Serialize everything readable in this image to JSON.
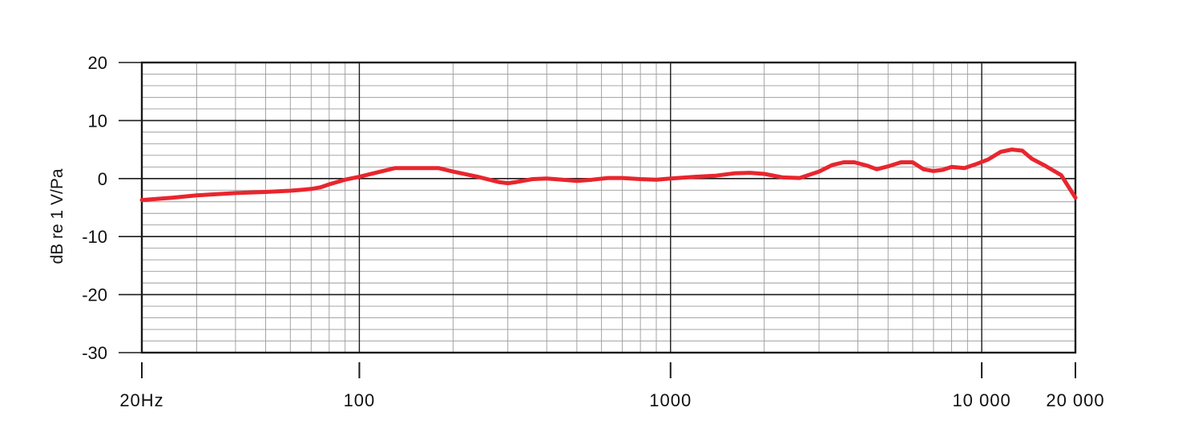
{
  "chart_data": {
    "type": "line",
    "title": "",
    "xlabel": "",
    "ylabel": "dB re 1 V/Pa",
    "x_scale": "log",
    "xlim": [
      20,
      20000
    ],
    "ylim": [
      -30,
      20
    ],
    "grid": true,
    "x_ticks": [
      {
        "value": 20,
        "label": "20Hz"
      },
      {
        "value": 100,
        "label": "100"
      },
      {
        "value": 1000,
        "label": "1000"
      },
      {
        "value": 10000,
        "label": "10 000"
      },
      {
        "value": 20000,
        "label": "20 000"
      }
    ],
    "y_ticks": [
      {
        "value": 20,
        "label": "20"
      },
      {
        "value": 10,
        "label": "10"
      },
      {
        "value": 0,
        "label": "0"
      },
      {
        "value": -10,
        "label": "-10"
      },
      {
        "value": -20,
        "label": "-20"
      },
      {
        "value": -30,
        "label": "-30"
      }
    ],
    "series": [
      {
        "color": "#e8262e",
        "points": [
          [
            20,
            -3.7
          ],
          [
            25,
            -3.3
          ],
          [
            30,
            -2.9
          ],
          [
            40,
            -2.5
          ],
          [
            50,
            -2.3
          ],
          [
            60,
            -2.1
          ],
          [
            70,
            -1.8
          ],
          [
            75,
            -1.5
          ],
          [
            80,
            -1.0
          ],
          [
            90,
            -0.2
          ],
          [
            100,
            0.3
          ],
          [
            115,
            1.1
          ],
          [
            130,
            1.8
          ],
          [
            150,
            1.8
          ],
          [
            180,
            1.8
          ],
          [
            200,
            1.2
          ],
          [
            240,
            0.3
          ],
          [
            280,
            -0.6
          ],
          [
            300,
            -0.8
          ],
          [
            320,
            -0.6
          ],
          [
            360,
            -0.1
          ],
          [
            400,
            0.0
          ],
          [
            450,
            -0.2
          ],
          [
            500,
            -0.4
          ],
          [
            560,
            -0.2
          ],
          [
            630,
            0.1
          ],
          [
            700,
            0.1
          ],
          [
            800,
            -0.1
          ],
          [
            900,
            -0.2
          ],
          [
            1000,
            0.0
          ],
          [
            1200,
            0.3
          ],
          [
            1400,
            0.5
          ],
          [
            1600,
            0.9
          ],
          [
            1800,
            1.0
          ],
          [
            2000,
            0.8
          ],
          [
            2300,
            0.2
          ],
          [
            2600,
            0.1
          ],
          [
            3000,
            1.2
          ],
          [
            3300,
            2.3
          ],
          [
            3600,
            2.8
          ],
          [
            3900,
            2.8
          ],
          [
            4300,
            2.2
          ],
          [
            4600,
            1.6
          ],
          [
            5000,
            2.1
          ],
          [
            5500,
            2.8
          ],
          [
            6000,
            2.8
          ],
          [
            6500,
            1.6
          ],
          [
            7000,
            1.3
          ],
          [
            7500,
            1.5
          ],
          [
            8000,
            2.0
          ],
          [
            8800,
            1.8
          ],
          [
            9500,
            2.4
          ],
          [
            10500,
            3.3
          ],
          [
            11500,
            4.6
          ],
          [
            12500,
            5.0
          ],
          [
            13500,
            4.8
          ],
          [
            14500,
            3.4
          ],
          [
            16000,
            2.2
          ],
          [
            18000,
            0.6
          ],
          [
            20000,
            -3.3
          ]
        ]
      }
    ]
  }
}
